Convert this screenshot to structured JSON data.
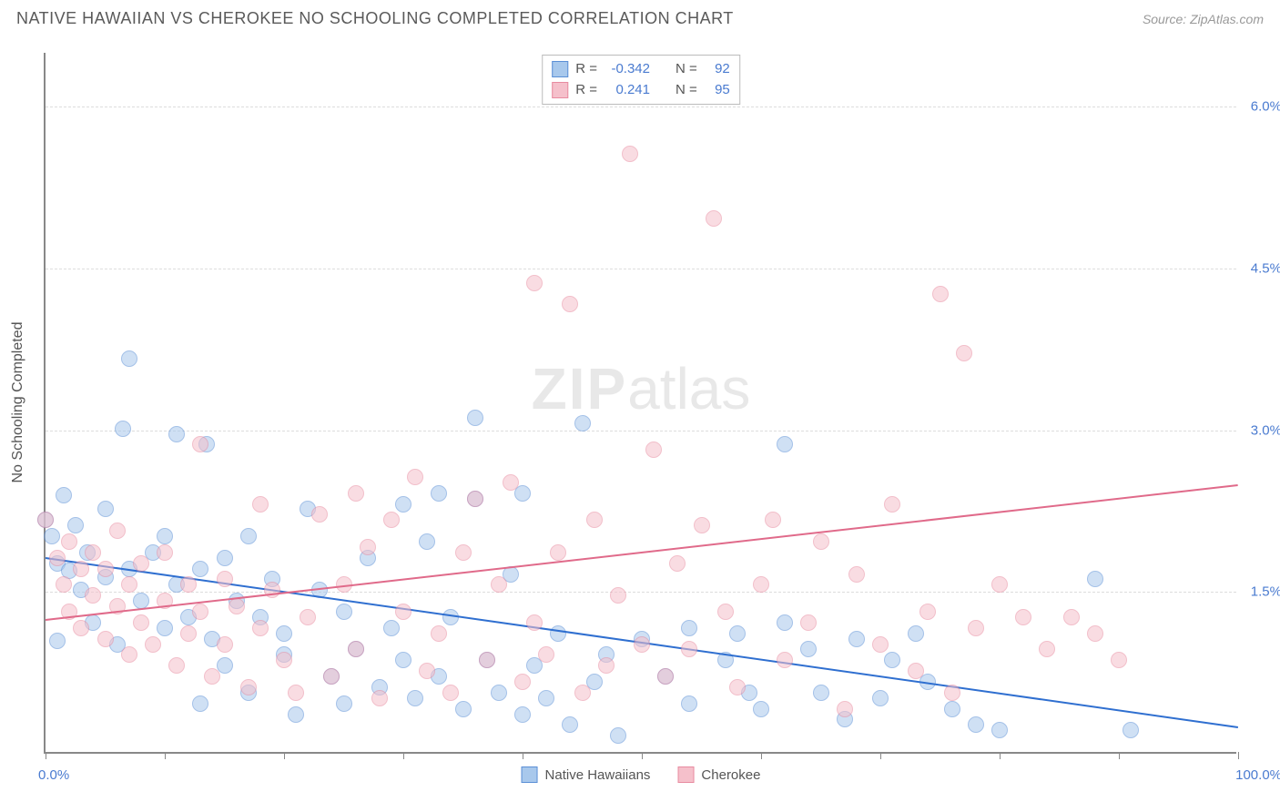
{
  "title": "NATIVE HAWAIIAN VS CHEROKEE NO SCHOOLING COMPLETED CORRELATION CHART",
  "source": "Source: ZipAtlas.com",
  "y_axis_title": "No Schooling Completed",
  "watermark_bold": "ZIP",
  "watermark_rest": "atlas",
  "chart": {
    "type": "scatter",
    "xlim": [
      0,
      100
    ],
    "ylim": [
      0,
      6.5
    ],
    "x_tick_positions": [
      0,
      10,
      20,
      30,
      40,
      50,
      60,
      70,
      80,
      90,
      100
    ],
    "x_label_min": "0.0%",
    "x_label_max": "100.0%",
    "y_ticks": [
      {
        "v": 1.5,
        "label": "1.5%"
      },
      {
        "v": 3.0,
        "label": "3.0%"
      },
      {
        "v": 4.5,
        "label": "4.5%"
      },
      {
        "v": 6.0,
        "label": "6.0%"
      }
    ],
    "grid_color": "#dddddd",
    "background_color": "#ffffff",
    "point_radius": 9,
    "point_opacity": 0.55,
    "series": [
      {
        "name": "Native Hawaiians",
        "color_fill": "#a8c8ec",
        "color_stroke": "#5b8fd6",
        "R": "-0.342",
        "N": "92",
        "trend": {
          "y_at_x0": 1.82,
          "y_at_x100": 0.25,
          "color": "#2f6fd0",
          "width": 2
        },
        "points": [
          [
            0,
            2.15
          ],
          [
            0.5,
            2.0
          ],
          [
            1,
            1.75
          ],
          [
            1,
            1.03
          ],
          [
            1.5,
            2.38
          ],
          [
            2,
            1.68
          ],
          [
            2.5,
            2.1
          ],
          [
            3,
            1.5
          ],
          [
            3.5,
            1.85
          ],
          [
            4,
            1.2
          ],
          [
            5,
            1.62
          ],
          [
            5,
            2.25
          ],
          [
            6,
            1.0
          ],
          [
            6.5,
            3.0
          ],
          [
            7,
            1.7
          ],
          [
            7,
            3.65
          ],
          [
            8,
            1.4
          ],
          [
            9,
            1.85
          ],
          [
            10,
            1.15
          ],
          [
            10,
            2.0
          ],
          [
            11,
            2.95
          ],
          [
            11,
            1.55
          ],
          [
            12,
            1.25
          ],
          [
            13,
            0.45
          ],
          [
            13,
            1.7
          ],
          [
            13.5,
            2.85
          ],
          [
            14,
            1.05
          ],
          [
            15,
            1.8
          ],
          [
            15,
            0.8
          ],
          [
            16,
            1.4
          ],
          [
            17,
            0.55
          ],
          [
            17,
            2.0
          ],
          [
            18,
            1.25
          ],
          [
            19,
            1.6
          ],
          [
            20,
            0.9
          ],
          [
            20,
            1.1
          ],
          [
            21,
            0.35
          ],
          [
            22,
            2.25
          ],
          [
            23,
            1.5
          ],
          [
            24,
            0.7
          ],
          [
            25,
            0.45
          ],
          [
            25,
            1.3
          ],
          [
            26,
            0.95
          ],
          [
            27,
            1.8
          ],
          [
            28,
            0.6
          ],
          [
            29,
            1.15
          ],
          [
            30,
            0.85
          ],
          [
            30,
            2.3
          ],
          [
            31,
            0.5
          ],
          [
            32,
            1.95
          ],
          [
            33,
            0.7
          ],
          [
            33,
            2.4
          ],
          [
            34,
            1.25
          ],
          [
            35,
            0.4
          ],
          [
            36,
            2.35
          ],
          [
            36,
            3.1
          ],
          [
            37,
            0.85
          ],
          [
            38,
            0.55
          ],
          [
            39,
            1.65
          ],
          [
            40,
            0.35
          ],
          [
            40,
            2.4
          ],
          [
            41,
            0.8
          ],
          [
            42,
            0.5
          ],
          [
            43,
            1.1
          ],
          [
            44,
            0.25
          ],
          [
            45,
            3.05
          ],
          [
            46,
            0.65
          ],
          [
            47,
            0.9
          ],
          [
            48,
            0.15
          ],
          [
            50,
            1.05
          ],
          [
            52,
            0.7
          ],
          [
            54,
            0.45
          ],
          [
            54,
            1.15
          ],
          [
            57,
            0.85
          ],
          [
            58,
            1.1
          ],
          [
            59,
            0.55
          ],
          [
            60,
            0.4
          ],
          [
            62,
            2.85
          ],
          [
            62,
            1.2
          ],
          [
            64,
            0.95
          ],
          [
            65,
            0.55
          ],
          [
            67,
            0.3
          ],
          [
            68,
            1.05
          ],
          [
            70,
            0.5
          ],
          [
            71,
            0.85
          ],
          [
            73,
            1.1
          ],
          [
            74,
            0.65
          ],
          [
            76,
            0.4
          ],
          [
            78,
            0.25
          ],
          [
            80,
            0.2
          ],
          [
            88,
            1.6
          ],
          [
            91,
            0.2
          ]
        ]
      },
      {
        "name": "Cherokee",
        "color_fill": "#f5c0cb",
        "color_stroke": "#e88ba0",
        "R": "0.241",
        "N": "95",
        "trend": {
          "y_at_x0": 1.25,
          "y_at_x100": 2.5,
          "color": "#e06a8a",
          "width": 2
        },
        "points": [
          [
            0,
            2.15
          ],
          [
            1,
            1.8
          ],
          [
            1.5,
            1.55
          ],
          [
            2,
            1.95
          ],
          [
            2,
            1.3
          ],
          [
            3,
            1.7
          ],
          [
            3,
            1.15
          ],
          [
            4,
            1.45
          ],
          [
            4,
            1.85
          ],
          [
            5,
            1.05
          ],
          [
            5,
            1.7
          ],
          [
            6,
            1.35
          ],
          [
            6,
            2.05
          ],
          [
            7,
            1.55
          ],
          [
            7,
            0.9
          ],
          [
            8,
            1.75
          ],
          [
            8,
            1.2
          ],
          [
            9,
            1.0
          ],
          [
            10,
            1.4
          ],
          [
            10,
            1.85
          ],
          [
            11,
            0.8
          ],
          [
            12,
            1.55
          ],
          [
            12,
            1.1
          ],
          [
            13,
            1.3
          ],
          [
            13,
            2.85
          ],
          [
            14,
            0.7
          ],
          [
            15,
            1.6
          ],
          [
            15,
            1.0
          ],
          [
            16,
            1.35
          ],
          [
            17,
            0.6
          ],
          [
            18,
            1.15
          ],
          [
            18,
            2.3
          ],
          [
            19,
            1.5
          ],
          [
            20,
            0.85
          ],
          [
            21,
            0.55
          ],
          [
            22,
            1.25
          ],
          [
            23,
            2.2
          ],
          [
            24,
            0.7
          ],
          [
            25,
            1.55
          ],
          [
            26,
            0.95
          ],
          [
            26,
            2.4
          ],
          [
            27,
            1.9
          ],
          [
            28,
            0.5
          ],
          [
            29,
            2.15
          ],
          [
            30,
            1.3
          ],
          [
            31,
            2.55
          ],
          [
            32,
            0.75
          ],
          [
            33,
            1.1
          ],
          [
            34,
            0.55
          ],
          [
            35,
            1.85
          ],
          [
            36,
            2.35
          ],
          [
            37,
            0.85
          ],
          [
            38,
            1.55
          ],
          [
            39,
            2.5
          ],
          [
            40,
            0.65
          ],
          [
            41,
            1.2
          ],
          [
            41,
            4.35
          ],
          [
            42,
            0.9
          ],
          [
            43,
            1.85
          ],
          [
            44,
            4.15
          ],
          [
            45,
            0.55
          ],
          [
            46,
            2.15
          ],
          [
            47,
            0.8
          ],
          [
            48,
            1.45
          ],
          [
            49,
            5.55
          ],
          [
            50,
            1.0
          ],
          [
            51,
            2.8
          ],
          [
            52,
            0.7
          ],
          [
            53,
            1.75
          ],
          [
            54,
            0.95
          ],
          [
            55,
            2.1
          ],
          [
            56,
            4.95
          ],
          [
            57,
            1.3
          ],
          [
            58,
            0.6
          ],
          [
            60,
            1.55
          ],
          [
            61,
            2.15
          ],
          [
            62,
            0.85
          ],
          [
            64,
            1.2
          ],
          [
            65,
            1.95
          ],
          [
            67,
            0.4
          ],
          [
            68,
            1.65
          ],
          [
            70,
            1.0
          ],
          [
            71,
            2.3
          ],
          [
            73,
            0.75
          ],
          [
            74,
            1.3
          ],
          [
            75,
            4.25
          ],
          [
            76,
            0.55
          ],
          [
            77,
            3.7
          ],
          [
            78,
            1.15
          ],
          [
            80,
            1.55
          ],
          [
            82,
            1.25
          ],
          [
            84,
            0.95
          ],
          [
            86,
            1.25
          ],
          [
            88,
            1.1
          ],
          [
            90,
            0.85
          ]
        ]
      }
    ]
  },
  "legend_top": {
    "R_label": "R =",
    "N_label": "N ="
  },
  "legend_bottom_labels": [
    "Native Hawaiians",
    "Cherokee"
  ]
}
